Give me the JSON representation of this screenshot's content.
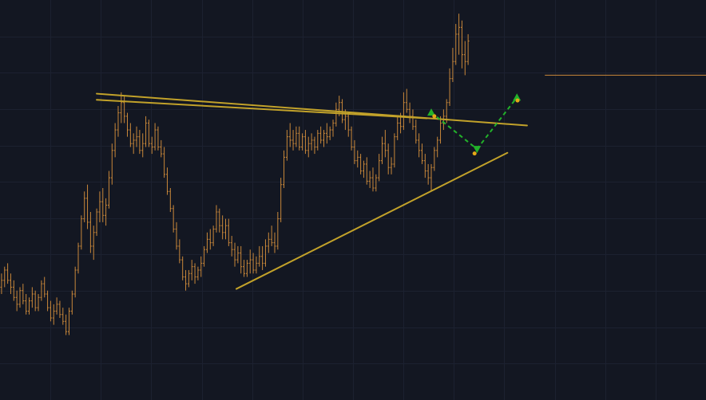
{
  "colors": {
    "background": "#131722",
    "grid": "#1c2130",
    "bar": "#c8873a",
    "trendline": "#c2a22a",
    "signal": "#22b22a",
    "pivot": "#e6a817",
    "price_line": "#c8873a"
  },
  "chart_data": {
    "type": "ohlc",
    "title": "",
    "xlabel": "",
    "ylabel": "",
    "grid": true,
    "legend": "none",
    "x_range": [
      0,
      230
    ],
    "ylim": [
      5,
      122
    ],
    "series": [
      {
        "values": [
          [
            38,
            42,
            36,
            40
          ],
          [
            40,
            44,
            38,
            43
          ],
          [
            43,
            45,
            39,
            40
          ],
          [
            40,
            42,
            36,
            38
          ],
          [
            38,
            40,
            34,
            35
          ],
          [
            35,
            37,
            31,
            33
          ],
          [
            33,
            38,
            32,
            37
          ],
          [
            37,
            39,
            33,
            34
          ],
          [
            34,
            36,
            30,
            31
          ],
          [
            31,
            35,
            30,
            34
          ],
          [
            34,
            38,
            32,
            36
          ],
          [
            36,
            37,
            31,
            32
          ],
          [
            32,
            36,
            31,
            35
          ],
          [
            35,
            40,
            34,
            39
          ],
          [
            39,
            41,
            35,
            36
          ],
          [
            36,
            37,
            31,
            32
          ],
          [
            32,
            34,
            28,
            29
          ],
          [
            29,
            33,
            27,
            31
          ],
          [
            31,
            35,
            30,
            33
          ],
          [
            33,
            34,
            29,
            30
          ],
          [
            30,
            32,
            27,
            28
          ],
          [
            28,
            30,
            24,
            25
          ],
          [
            25,
            32,
            24,
            31
          ],
          [
            31,
            37,
            30,
            36
          ],
          [
            36,
            44,
            35,
            43
          ],
          [
            43,
            51,
            42,
            50
          ],
          [
            50,
            59,
            49,
            58
          ],
          [
            58,
            66,
            57,
            64
          ],
          [
            64,
            68,
            55,
            57
          ],
          [
            57,
            60,
            48,
            50
          ],
          [
            50,
            56,
            46,
            54
          ],
          [
            54,
            61,
            53,
            60
          ],
          [
            60,
            66,
            57,
            63
          ],
          [
            63,
            67,
            57,
            59
          ],
          [
            59,
            64,
            56,
            62
          ],
          [
            62,
            72,
            61,
            70
          ],
          [
            70,
            80,
            68,
            78
          ],
          [
            78,
            86,
            76,
            84
          ],
          [
            84,
            91,
            82,
            89
          ],
          [
            89,
            95,
            86,
            92
          ],
          [
            92,
            94,
            86,
            88
          ],
          [
            88,
            89,
            82,
            84
          ],
          [
            84,
            86,
            79,
            80
          ],
          [
            80,
            83,
            77,
            81
          ],
          [
            81,
            85,
            79,
            82
          ],
          [
            82,
            84,
            77,
            78
          ],
          [
            78,
            83,
            76,
            80
          ],
          [
            80,
            88,
            79,
            86
          ],
          [
            86,
            87,
            79,
            80
          ],
          [
            80,
            82,
            77,
            79
          ],
          [
            79,
            86,
            78,
            84
          ],
          [
            84,
            85,
            78,
            79
          ],
          [
            79,
            81,
            76,
            77
          ],
          [
            77,
            79,
            70,
            71
          ],
          [
            71,
            73,
            65,
            66
          ],
          [
            66,
            67,
            60,
            61
          ],
          [
            61,
            62,
            54,
            55
          ],
          [
            55,
            57,
            49,
            50
          ],
          [
            50,
            52,
            45,
            46
          ],
          [
            46,
            47,
            40,
            41
          ],
          [
            41,
            43,
            37,
            39
          ],
          [
            39,
            43,
            38,
            42
          ],
          [
            42,
            46,
            40,
            44
          ],
          [
            44,
            45,
            39,
            41
          ],
          [
            41,
            44,
            40,
            43
          ],
          [
            43,
            47,
            41,
            45
          ],
          [
            45,
            50,
            44,
            49
          ],
          [
            49,
            54,
            48,
            52
          ],
          [
            52,
            55,
            49,
            51
          ],
          [
            51,
            56,
            50,
            55
          ],
          [
            55,
            62,
            54,
            60
          ],
          [
            60,
            61,
            54,
            56
          ],
          [
            56,
            59,
            52,
            54
          ],
          [
            54,
            58,
            52,
            56
          ],
          [
            56,
            58,
            50,
            51
          ],
          [
            51,
            53,
            47,
            49
          ],
          [
            49,
            51,
            44,
            46
          ],
          [
            46,
            50,
            45,
            48
          ],
          [
            48,
            50,
            42,
            44
          ],
          [
            44,
            46,
            41,
            42
          ],
          [
            42,
            46,
            41,
            45
          ],
          [
            45,
            49,
            42,
            46
          ],
          [
            46,
            48,
            42,
            43
          ],
          [
            43,
            47,
            42,
            45
          ],
          [
            45,
            50,
            44,
            47
          ],
          [
            47,
            50,
            43,
            45
          ],
          [
            45,
            52,
            44,
            50
          ],
          [
            50,
            54,
            48,
            52
          ],
          [
            52,
            56,
            50,
            51
          ],
          [
            51,
            54,
            48,
            50
          ],
          [
            50,
            60,
            49,
            58
          ],
          [
            58,
            70,
            57,
            68
          ],
          [
            68,
            78,
            67,
            76
          ],
          [
            76,
            84,
            75,
            82
          ],
          [
            82,
            86,
            79,
            81
          ],
          [
            81,
            84,
            78,
            80
          ],
          [
            80,
            85,
            79,
            83
          ],
          [
            83,
            85,
            78,
            79
          ],
          [
            79,
            83,
            78,
            82
          ],
          [
            82,
            84,
            77,
            78
          ],
          [
            78,
            82,
            76,
            80
          ],
          [
            80,
            83,
            78,
            81
          ],
          [
            81,
            82,
            77,
            79
          ],
          [
            79,
            84,
            78,
            83
          ],
          [
            83,
            85,
            80,
            81
          ],
          [
            81,
            84,
            79,
            83
          ],
          [
            83,
            86,
            80,
            82
          ],
          [
            82,
            85,
            81,
            84
          ],
          [
            84,
            87,
            82,
            86
          ],
          [
            86,
            92,
            85,
            90
          ],
          [
            90,
            94,
            88,
            92
          ],
          [
            92,
            93,
            86,
            87
          ],
          [
            87,
            90,
            84,
            88
          ],
          [
            88,
            89,
            82,
            84
          ],
          [
            84,
            85,
            78,
            79
          ],
          [
            79,
            81,
            74,
            75
          ],
          [
            75,
            78,
            73,
            76
          ],
          [
            76,
            77,
            71,
            72
          ],
          [
            72,
            75,
            70,
            74
          ],
          [
            74,
            76,
            68,
            69
          ],
          [
            69,
            72,
            67,
            70
          ],
          [
            70,
            73,
            66,
            67
          ],
          [
            67,
            71,
            66,
            70
          ],
          [
            70,
            77,
            69,
            75
          ],
          [
            75,
            82,
            74,
            80
          ],
          [
            80,
            84,
            76,
            78
          ],
          [
            78,
            80,
            71,
            73
          ],
          [
            73,
            76,
            71,
            74
          ],
          [
            74,
            83,
            73,
            82
          ],
          [
            82,
            88,
            81,
            86
          ],
          [
            86,
            89,
            83,
            85
          ],
          [
            85,
            95,
            84,
            92
          ],
          [
            92,
            96,
            89,
            90
          ],
          [
            90,
            92,
            86,
            88
          ],
          [
            88,
            90,
            84,
            85
          ],
          [
            85,
            87,
            80,
            81
          ],
          [
            81,
            83,
            76,
            78
          ],
          [
            78,
            80,
            74,
            75
          ],
          [
            75,
            77,
            70,
            72
          ],
          [
            72,
            74,
            68,
            70
          ],
          [
            70,
            74,
            66,
            73
          ],
          [
            73,
            79,
            72,
            78
          ],
          [
            78,
            82,
            76,
            81
          ],
          [
            81,
            88,
            80,
            86
          ],
          [
            86,
            90,
            84,
            88
          ],
          [
            88,
            93,
            86,
            92
          ],
          [
            92,
            102,
            91,
            99
          ],
          [
            99,
            108,
            98,
            104
          ],
          [
            104,
            115,
            103,
            112
          ],
          [
            112,
            118,
            106,
            114
          ],
          [
            114,
            116,
            102,
            106
          ],
          [
            106,
            110,
            100,
            104
          ],
          [
            104,
            112,
            103,
            110
          ]
        ]
      }
    ],
    "trendlines": [
      {
        "x": [
          31.5,
          171.7
        ],
        "y": [
          94.6,
          85.3
        ]
      },
      {
        "x": [
          31.5,
          139.1
        ],
        "y": [
          92.8,
          87.4
        ]
      },
      {
        "x": [
          77,
          165.3
        ],
        "y": [
          37.5,
          77.3
        ]
      }
    ],
    "signals": [
      {
        "kind": "buy",
        "x": 140.5,
        "y": 89.1
      },
      {
        "kind": "sell",
        "x": 155.4,
        "y": 78.4
      },
      {
        "kind": "buy",
        "x": 168.4,
        "y": 93.5
      }
    ],
    "pivots": [
      {
        "x": 141.5,
        "y": 88.0
      },
      {
        "x": 154.6,
        "y": 77.1
      },
      {
        "x": 168.6,
        "y": 92.6
      }
    ],
    "price_line": {
      "from_x": 177.5,
      "y": 100.0
    }
  }
}
